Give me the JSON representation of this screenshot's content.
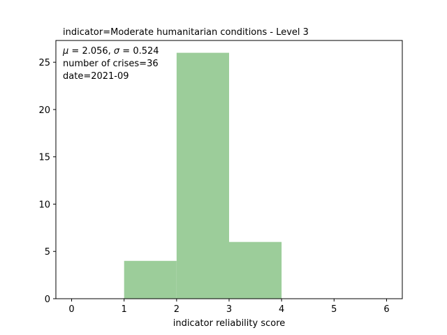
{
  "chart_data": {
    "type": "bar",
    "title": "indicator=Moderate humanitarian conditions - Level 3",
    "xlabel": "indicator reliability score",
    "ylabel": "",
    "bins": [
      {
        "x0": 1,
        "x1": 2,
        "count": 4
      },
      {
        "x0": 2,
        "x1": 3,
        "count": 26
      },
      {
        "x0": 3,
        "x1": 4,
        "count": 6
      }
    ],
    "xlim": [
      -0.3,
      6.3
    ],
    "ylim": [
      0,
      27.3
    ],
    "xticks": [
      0,
      1,
      2,
      3,
      4,
      5,
      6
    ],
    "yticks": [
      0,
      5,
      10,
      15,
      20,
      25
    ],
    "bar_color": "#9ccd9a",
    "annotations": {
      "stats_mu_label": "μ",
      "stats_mu_value": " = 2.056,  ",
      "stats_sigma_label": "σ",
      "stats_sigma_value": " = 0.524",
      "crises": "number of crises=36",
      "date": "date=2021-09"
    },
    "grid": false,
    "legend": "none"
  }
}
